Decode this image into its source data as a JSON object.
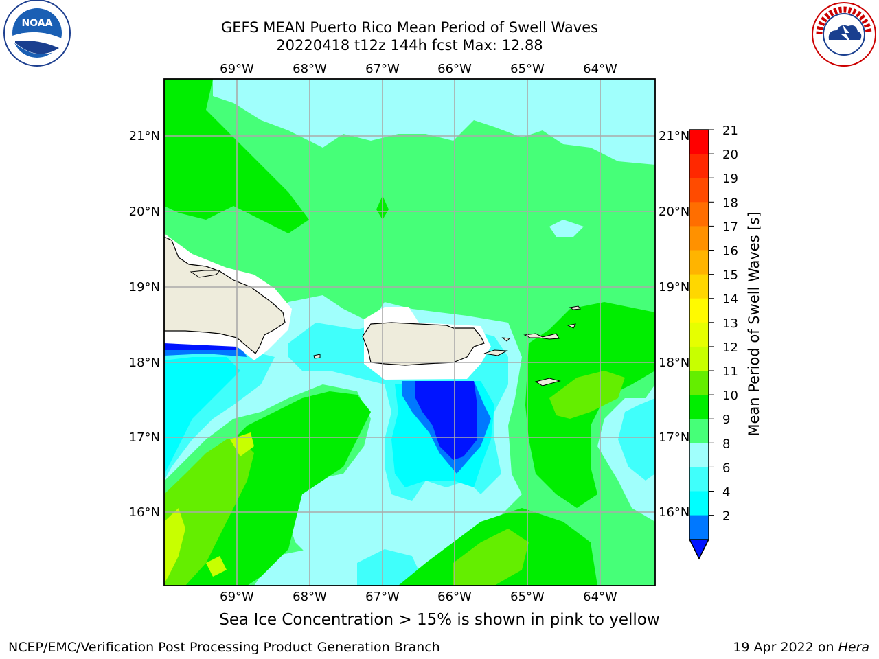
{
  "header": {
    "title_line1": "GEFS MEAN Puerto Rico Mean Period of Swell Waves",
    "title_line2": "20220418 t12z 144h fcst   Max: 12.88"
  },
  "logos": {
    "left": {
      "icon": "noaa-logo",
      "text": "NOAA"
    },
    "right": {
      "icon": "nws-logo",
      "text": "NATIONAL WEATHER SERVICE"
    }
  },
  "map": {
    "lon_labels": [
      "69°W",
      "68°W",
      "67°W",
      "66°W",
      "65°W",
      "64°W"
    ],
    "lat_labels": [
      "21°N",
      "20°N",
      "19°N",
      "18°N",
      "17°N",
      "16°N"
    ],
    "land_color": "#eeecdc",
    "colors": {
      "c2_4": "#0014ff",
      "c4_6": "#0078ff",
      "c6_8": "#00ffff",
      "c8_9": "#40fffb",
      "c9_10": "#a0fffc",
      "c10_11": "#46ff78",
      "c11_12": "#00ee00",
      "c12_13": "#64ee00",
      "c13_14": "#c8ff00"
    }
  },
  "colorbar": {
    "label": "Mean Period of Swell Waves [s]",
    "ticks": [
      "21",
      "20",
      "19",
      "18",
      "17",
      "16",
      "15",
      "14",
      "13",
      "12",
      "11",
      "10",
      "9",
      "8",
      "6",
      "4",
      "2"
    ],
    "colors_top_to_bottom": [
      "#ff0000",
      "#ff2800",
      "#ff4b00",
      "#ff6e00",
      "#ff9100",
      "#ffb400",
      "#ffd700",
      "#fffa00",
      "#e6ff00",
      "#c8ff00",
      "#64ee00",
      "#00ee00",
      "#46ff78",
      "#a0fffc",
      "#40fffb",
      "#00ffff",
      "#0078ff"
    ],
    "extend_color": "#0014ff"
  },
  "subtitle": "Sea Ice Concentration > 15% is shown in pink to yellow",
  "footer": {
    "left": "NCEP/EMC/Verification Post Processing Product Generation Branch",
    "right_date": "19 Apr 2022 on ",
    "right_host": "Hera"
  }
}
